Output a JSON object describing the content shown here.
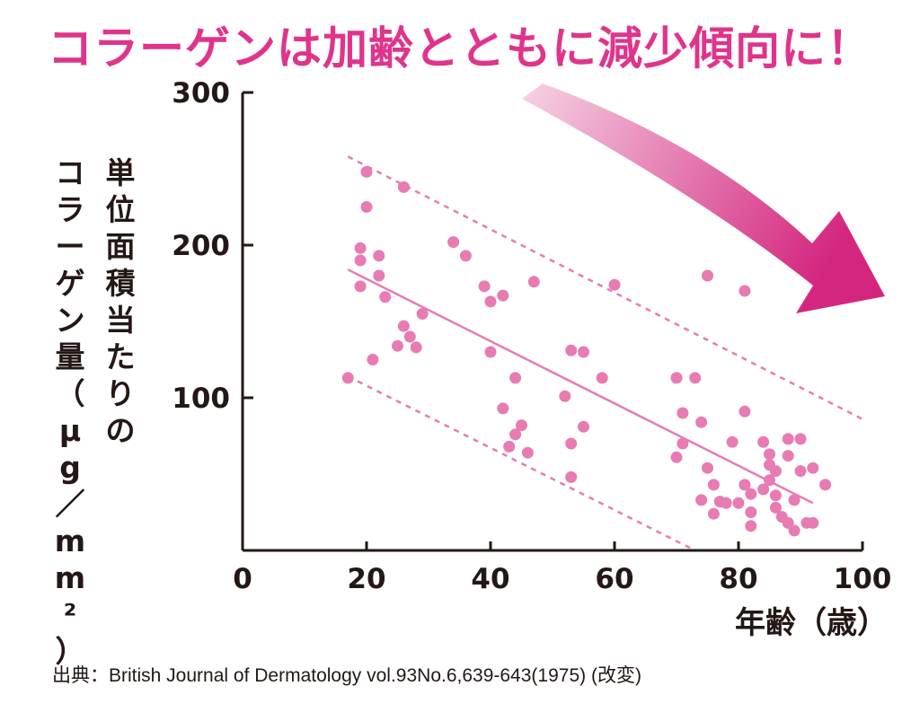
{
  "headline": "コラーゲンは加齢とともに減少傾向に！",
  "ylabel_col1": "単位面積当たりの",
  "ylabel_col2": "コラーゲン量（μg／mm²）",
  "xlabel": "年齢（歳）",
  "source": "出典：British Journal of Dermatology vol.93No.6,639-643(1975) (改変)",
  "colors": {
    "headline": "#e0348c",
    "points": "#e87bb2",
    "trend": "#e87bb2",
    "arrow_start": "#f6d3e4",
    "arrow_end": "#d4267f",
    "axis": "#231815"
  },
  "chart_data": {
    "type": "scatter",
    "xlim": [
      0,
      100
    ],
    "ylim": [
      0,
      300
    ],
    "xticks": [
      "0",
      "20",
      "40",
      "60",
      "80",
      "100"
    ],
    "yticks": [
      "100",
      "200",
      "300"
    ],
    "xlabel": "年齢（歳）",
    "ylabel": "単位面積当たりのコラーゲン量（μg／mm²）",
    "grid": false,
    "points": [
      [
        17,
        113
      ],
      [
        19,
        198
      ],
      [
        19,
        190
      ],
      [
        19,
        173
      ],
      [
        20,
        225
      ],
      [
        20,
        248
      ],
      [
        21,
        125
      ],
      [
        22,
        193
      ],
      [
        22,
        180
      ],
      [
        23,
        166
      ],
      [
        25,
        134
      ],
      [
        26,
        238
      ],
      [
        26,
        147
      ],
      [
        27,
        140
      ],
      [
        28,
        133
      ],
      [
        29,
        155
      ],
      [
        34,
        202
      ],
      [
        36,
        193
      ],
      [
        39,
        173
      ],
      [
        40,
        163
      ],
      [
        40,
        130
      ],
      [
        42,
        167
      ],
      [
        42,
        93
      ],
      [
        43,
        68
      ],
      [
        44,
        76
      ],
      [
        44,
        113
      ],
      [
        45,
        82
      ],
      [
        46,
        64
      ],
      [
        47,
        176
      ],
      [
        52,
        101
      ],
      [
        53,
        131
      ],
      [
        53,
        70
      ],
      [
        53,
        48
      ],
      [
        55,
        130
      ],
      [
        55,
        81
      ],
      [
        58,
        113
      ],
      [
        60,
        174
      ],
      [
        70,
        113
      ],
      [
        70,
        61
      ],
      [
        71,
        90
      ],
      [
        71,
        70
      ],
      [
        73,
        113
      ],
      [
        74,
        84
      ],
      [
        75,
        180
      ],
      [
        75,
        54
      ],
      [
        76,
        43
      ],
      [
        77,
        32
      ],
      [
        78,
        31
      ],
      [
        79,
        71
      ],
      [
        80,
        31
      ],
      [
        81,
        170
      ],
      [
        81,
        91
      ],
      [
        81,
        43
      ],
      [
        82,
        37
      ],
      [
        82,
        25
      ],
      [
        82,
        16
      ],
      [
        84,
        71
      ],
      [
        84,
        40
      ],
      [
        85,
        63
      ],
      [
        85,
        56
      ],
      [
        85,
        46
      ],
      [
        86,
        52
      ],
      [
        86,
        36
      ],
      [
        86,
        28
      ],
      [
        87,
        22
      ],
      [
        88,
        73
      ],
      [
        88,
        62
      ],
      [
        88,
        18
      ],
      [
        89,
        33
      ],
      [
        89,
        13
      ],
      [
        90,
        73
      ],
      [
        90,
        52
      ],
      [
        91,
        18
      ],
      [
        92,
        54
      ],
      [
        92,
        18
      ],
      [
        94,
        43
      ],
      [
        74,
        33
      ],
      [
        76,
        24
      ]
    ],
    "trend": {
      "type": "line",
      "x": [
        17,
        92
      ],
      "y": [
        184,
        31
      ]
    },
    "bands": [
      {
        "type": "dashed",
        "x": [
          17,
          100
        ],
        "y": [
          258,
          86
        ]
      },
      {
        "type": "dashed",
        "x": [
          17,
          73
        ],
        "y": [
          114,
          0
        ]
      }
    ]
  }
}
